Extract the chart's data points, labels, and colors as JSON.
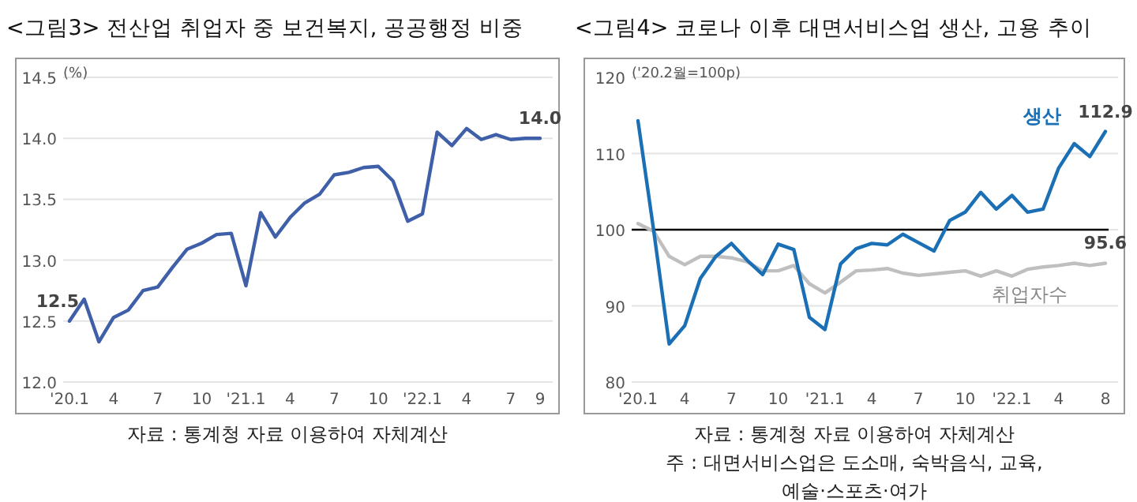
{
  "chart_data": [
    {
      "type": "line",
      "title": "<그림3> 전산업 취업자 중 보건복지, 공공행정 비중",
      "categories": [
        "'20.1",
        null,
        null,
        "4",
        null,
        null,
        "7",
        null,
        null,
        "10",
        null,
        null,
        "'21.1",
        null,
        null,
        "4",
        null,
        null,
        "7",
        null,
        null,
        "10",
        null,
        null,
        "'22.1",
        null,
        null,
        "4",
        null,
        null,
        "7",
        null,
        "9"
      ],
      "series": [
        {
          "color": "#3f5fa8",
          "values": [
            12.5,
            12.68,
            12.33,
            12.53,
            12.59,
            12.75,
            12.78,
            12.94,
            13.09,
            13.14,
            13.21,
            13.22,
            12.79,
            13.39,
            13.19,
            13.35,
            13.47,
            13.54,
            13.7,
            13.72,
            13.76,
            13.77,
            13.65,
            13.32,
            13.38,
            14.05,
            13.94,
            14.08,
            13.99,
            14.03,
            13.99,
            14.0,
            14.0
          ]
        }
      ],
      "ylim": [
        12.0,
        14.5
      ],
      "yticks": [
        {
          "value": 12.0,
          "label": "12.0"
        },
        {
          "value": 12.5,
          "label": "12.5"
        },
        {
          "value": 13.0,
          "label": "13.0"
        },
        {
          "value": 13.5,
          "label": "13.5"
        },
        {
          "value": 14.0,
          "label": "14.0"
        },
        {
          "value": 14.5,
          "label": "14.5"
        }
      ],
      "grid": "y",
      "annotations": [
        "(%)",
        {
          "text": "12.5",
          "x": "'20.1",
          "y": 12.5
        },
        {
          "text": "14.0",
          "x": "9",
          "y": 14.0
        },
        "자료 : 통계청 자료 이용하여 자체계산"
      ]
    },
    {
      "type": "line",
      "title": "<그림4> 코로나 이후 대면서비스업 생산, 고용 추이",
      "categories": [
        "'20.1",
        null,
        null,
        "4",
        null,
        null,
        "7",
        null,
        null,
        "10",
        null,
        null,
        "'21.1",
        null,
        null,
        "4",
        null,
        null,
        "7",
        null,
        null,
        "10",
        null,
        null,
        "'22.1",
        null,
        null,
        "4",
        null,
        null,
        "8"
      ],
      "series": [
        {
          "name": "취업자수",
          "color": "#bfbfbf",
          "values": [
            100.8,
            99.8,
            96.5,
            95.4,
            96.5,
            96.5,
            96.3,
            95.8,
            94.6,
            94.6,
            95.3,
            92.9,
            91.7,
            93.1,
            94.6,
            94.7,
            94.9,
            94.3,
            94.0,
            94.2,
            94.4,
            94.6,
            93.9,
            94.6,
            93.9,
            94.8,
            95.1,
            95.3,
            95.6,
            95.3,
            95.6
          ]
        },
        {
          "name": "생산",
          "color": "#1a6fb5",
          "values": [
            114.3,
            100,
            85.0,
            87.4,
            93.6,
            96.5,
            98.2,
            96.0,
            94.1,
            98.1,
            97.4,
            88.5,
            86.9,
            95.5,
            97.5,
            98.2,
            98.0,
            99.4,
            98.3,
            97.2,
            101.2,
            102.3,
            104.9,
            102.7,
            104.5,
            102.3,
            102.7,
            108.1,
            111.3,
            109.6,
            112.9
          ]
        }
      ],
      "ylim": [
        80,
        120
      ],
      "yticks": [
        80,
        90,
        100,
        110,
        120
      ],
      "grid": "y",
      "ref_lines": [
        {
          "axis": "y",
          "value": 100,
          "color": "#000000"
        }
      ],
      "annotations": [
        "('20.2월=100p)",
        {
          "text": "112.9",
          "x": "8",
          "y": 112.9
        },
        {
          "text": "95.6",
          "x": "8",
          "y": 95.6
        },
        "자료 : 통계청 자료 이용하여 자체계산",
        "주 : 대면서비스업은 도소매, 숙박음식, 교육,",
        "예술·스포츠·여가"
      ]
    }
  ]
}
